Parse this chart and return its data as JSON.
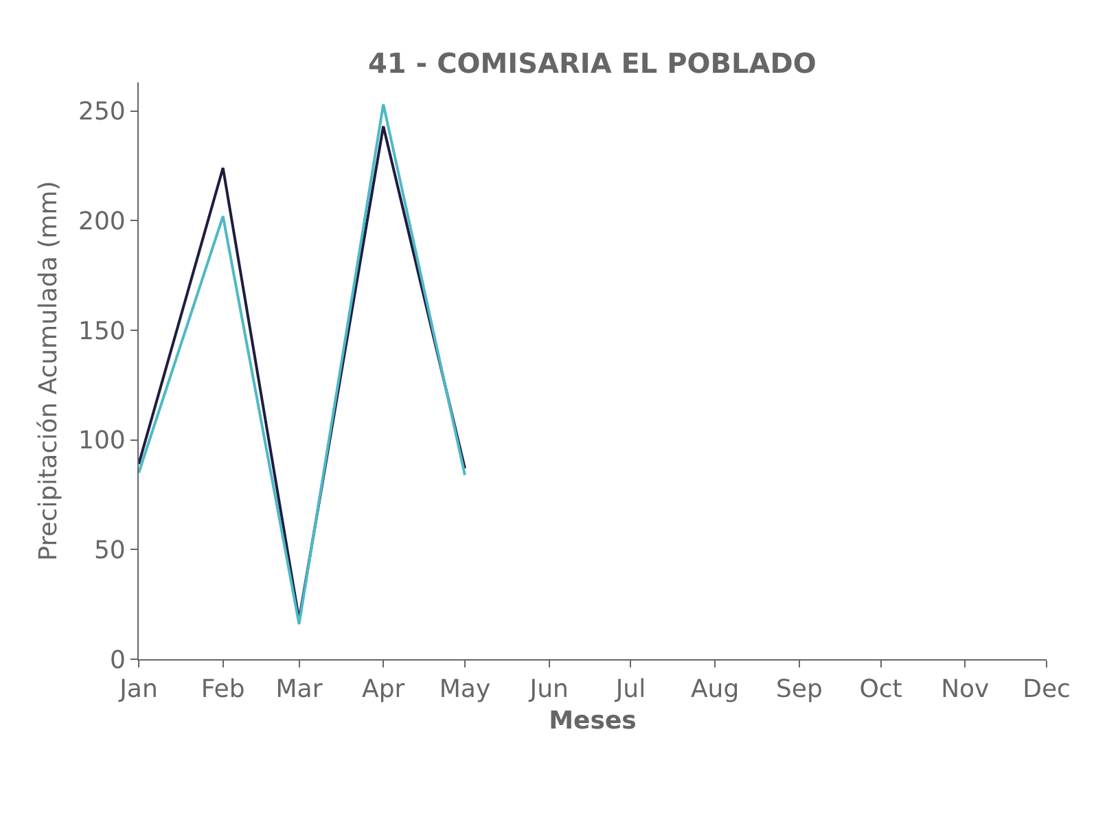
{
  "chart_data": {
    "type": "line",
    "title": "41 - COMISARIA EL POBLADO",
    "xlabel": "Meses",
    "ylabel": "Precipitación Acumulada (mm)",
    "x": [
      "--01-01",
      "--02-01",
      "--03-01",
      "--04-01",
      "--05-01"
    ],
    "series": [
      {
        "color": "#1c1d40",
        "values": [
          89,
          224,
          18,
          243,
          87
        ]
      },
      {
        "color": "#4fb8c6",
        "values": [
          85,
          202,
          16,
          253,
          84
        ]
      }
    ],
    "xlim": [
      "--01-01",
      "--12-01"
    ],
    "xticks": [
      {
        "value": "--01-01",
        "label": "Jan"
      },
      {
        "value": "--02-01",
        "label": "Feb"
      },
      {
        "value": "--03-01",
        "label": "Mar"
      },
      {
        "value": "--04-01",
        "label": "Apr"
      },
      {
        "value": "--05-01",
        "label": "May"
      },
      {
        "value": "--06-01",
        "label": "Jun"
      },
      {
        "value": "--07-01",
        "label": "Jul"
      },
      {
        "value": "--08-01",
        "label": "Aug"
      },
      {
        "value": "--09-01",
        "label": "Sep"
      },
      {
        "value": "--10-01",
        "label": "Oct"
      },
      {
        "value": "--11-01",
        "label": "Nov"
      },
      {
        "value": "--12-01",
        "label": "Dec"
      }
    ],
    "ylim": [
      0,
      263
    ],
    "yticks": [
      0,
      50,
      100,
      150,
      200,
      250
    ],
    "grid": false,
    "marker": "none",
    "line_style": "solid"
  }
}
